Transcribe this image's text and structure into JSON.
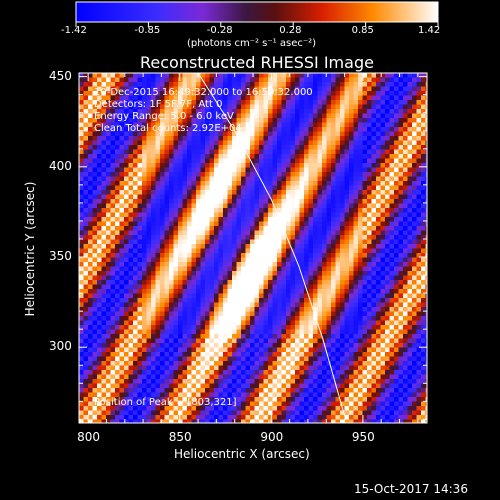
{
  "chart_data": {
    "type": "heatmap",
    "title": "Reconstructed RHESSI Image",
    "xlabel": "Heliocentric X (arcsec)",
    "ylabel": "Heliocentric Y (arcsec)",
    "xlim": [
      795,
      985
    ],
    "ylim": [
      258,
      452
    ],
    "xticks": [
      800,
      850,
      900,
      950
    ],
    "yticks": [
      300,
      350,
      400,
      450
    ],
    "colorbar": {
      "min": -1.42,
      "max": 1.42,
      "ticks": [
        "-1.42",
        "-0.85",
        "-0.28",
        "0.28",
        "0.85",
        "1.42"
      ],
      "unit_label": "(photons cm⁻² s⁻¹ asec⁻²)"
    },
    "annotations": [
      "10-Dec-2015 16:49:32.000 to 16:59:32.000",
      "Detectors: 1F 5F 7F, Att 0",
      "Energy Range: 5.0 - 6.0 keV",
      "Clean     Total counts: 2.92E+04"
    ],
    "peak_label": "Position of Peak = [803,321]",
    "peak_position": [
      803,
      321
    ],
    "limb": [
      [
        860,
        452
      ],
      [
        880,
        420
      ],
      [
        900,
        382
      ],
      [
        915,
        345
      ],
      [
        928,
        305
      ],
      [
        940,
        262
      ]
    ]
  },
  "footer": {
    "timestamp": "15-Oct-2017 14:36"
  },
  "colors": {
    "background": "#000000",
    "axes": "#ffffff"
  }
}
